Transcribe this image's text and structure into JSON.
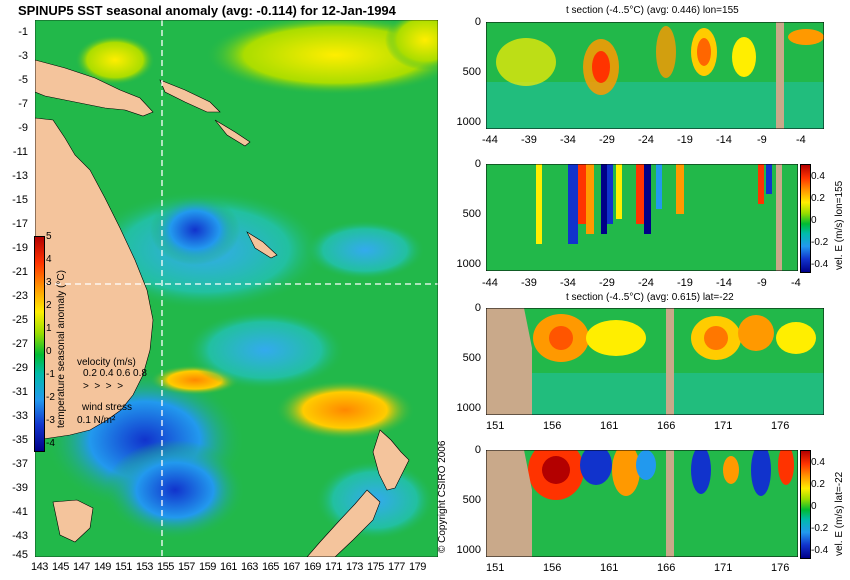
{
  "map": {
    "title": "SPINUP5 SST seasonal anomaly (avg: -0.114) for 12-Jan-1994",
    "lat_ticks": [
      "-1",
      "-3",
      "-5",
      "-7",
      "-9",
      "-11",
      "-13",
      "-15",
      "-17",
      "-19",
      "-21",
      "-23",
      "-25",
      "-27",
      "-29",
      "-31",
      "-33",
      "-35",
      "-37",
      "-39",
      "-41",
      "-43",
      "-45"
    ],
    "lon_ticks": [
      "143",
      "145",
      "147",
      "149",
      "151",
      "153",
      "155",
      "157",
      "159",
      "161",
      "163",
      "165",
      "167",
      "169",
      "171",
      "173",
      "175",
      "177",
      "179"
    ],
    "colorbar": {
      "label": "temperature seasonal anomaly (°C)",
      "ticks": [
        "5",
        "4",
        "3",
        "2",
        "1",
        "0",
        "-1",
        "-2",
        "-3",
        "-4"
      ],
      "colors": [
        "#b30000",
        "#ff3300",
        "#ff9900",
        "#ffee00",
        "#99dd00",
        "#00bb33",
        "#00bbaa",
        "#2299ee",
        "#1133cc",
        "#000088"
      ]
    },
    "velocity_legend": {
      "title": "velocity (m/s)",
      "values": "0.2 0.4 0.6 0.8"
    },
    "wind_legend": {
      "title": "wind stress",
      "value": "0.1 N/m²"
    },
    "copyright": "© Copyright CSIRO 2006",
    "colors": {
      "land": "#f4c49c",
      "ocean_base": "#22b84a",
      "crosshair": "#ffffff"
    }
  },
  "panels": {
    "p1": {
      "title": "t section (-4..5°C) (avg: 0.446) lon=155",
      "x_ticks": [
        "-44",
        "-39",
        "-34",
        "-29",
        "-24",
        "-19",
        "-14",
        "-9",
        "-4"
      ],
      "y_ticks": [
        "0",
        "500",
        "1000"
      ]
    },
    "p2": {
      "title": "",
      "x_ticks": [
        "-44",
        "-39",
        "-34",
        "-29",
        "-24",
        "-19",
        "-14",
        "-9",
        "-4"
      ],
      "y_ticks": [
        "0",
        "500",
        "1000"
      ],
      "colorbar_label": "vel. E (m/s) lon=155",
      "colorbar_ticks": [
        "0.4",
        "0.2",
        "0",
        "-0.2",
        "-0.4"
      ]
    },
    "p3": {
      "title": "t section (-4..5°C) (avg: 0.615) lat=-22",
      "x_ticks": [
        "151",
        "156",
        "161",
        "166",
        "171",
        "176"
      ],
      "y_ticks": [
        "0",
        "500",
        "1000"
      ]
    },
    "p4": {
      "title": "",
      "x_ticks": [
        "151",
        "156",
        "161",
        "166",
        "171",
        "176"
      ],
      "y_ticks": [
        "0",
        "500",
        "1000"
      ],
      "colorbar_label": "vel. E (m/s) lat=-22",
      "colorbar_ticks": [
        "0.4",
        "0.2",
        "0",
        "-0.2",
        "-0.4"
      ]
    }
  }
}
